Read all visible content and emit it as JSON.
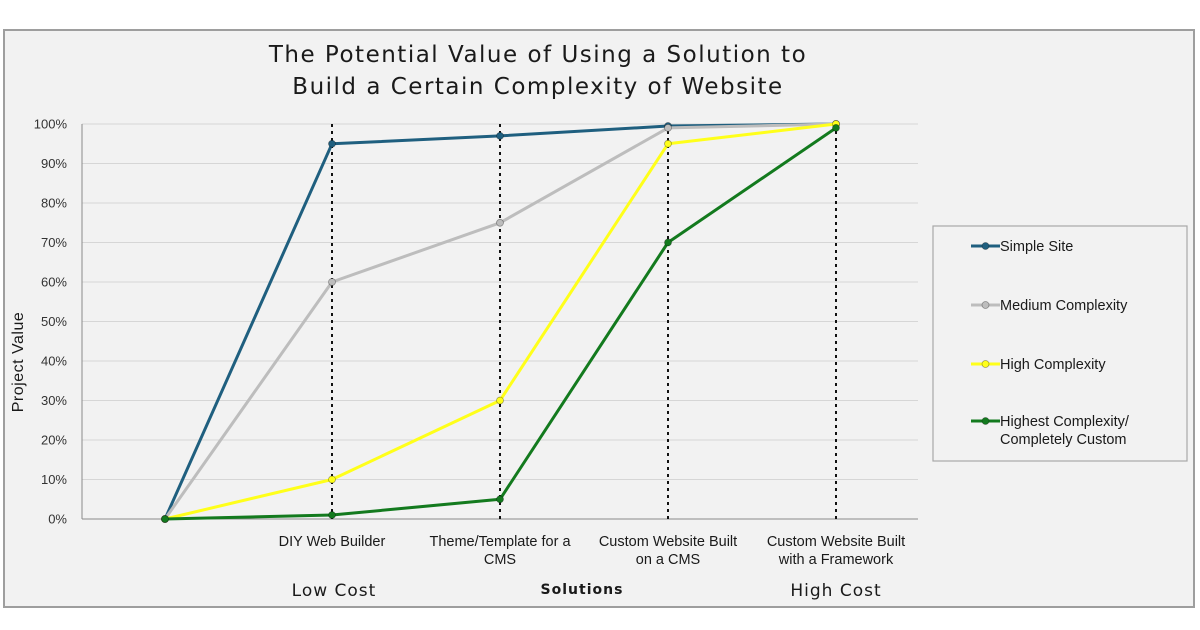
{
  "chart_data": {
    "type": "line",
    "title_lines": [
      "The Potential Value of Using a Solution to",
      "Build a Certain Complexity of Website"
    ],
    "xlabel": "Solutions",
    "ylabel": "Project Value",
    "x_categories": [
      {
        "lines": [
          ""
        ]
      },
      {
        "lines": [
          "DIY Web Builder"
        ]
      },
      {
        "lines": [
          "Theme/Template for a",
          "CMS"
        ]
      },
      {
        "lines": [
          "Custom Website Built",
          "on a CMS"
        ]
      },
      {
        "lines": [
          "Custom Website Built",
          "with a Framework"
        ]
      }
    ],
    "cost_labels": {
      "low": "Low Cost",
      "high": "High Cost"
    },
    "y_ticks": [
      "0%",
      "10%",
      "20%",
      "30%",
      "40%",
      "50%",
      "60%",
      "70%",
      "80%",
      "90%",
      "100%"
    ],
    "ylim": [
      0,
      100
    ],
    "grid": true,
    "dotted_verticals_at": [
      1,
      2,
      3,
      4
    ],
    "legend_position": "right",
    "series": [
      {
        "name_lines": [
          "Simple Site"
        ],
        "color": "#1f5f7f",
        "values": [
          0,
          95,
          97,
          99.5,
          100
        ]
      },
      {
        "name_lines": [
          "Medium Complexity"
        ],
        "color": "#bdbdbd",
        "values": [
          0,
          60,
          75,
          99,
          100
        ]
      },
      {
        "name_lines": [
          "High Complexity"
        ],
        "color": "#ffff1a",
        "values": [
          0,
          10,
          30,
          95,
          100
        ]
      },
      {
        "name_lines": [
          "Highest Complexity/",
          "Completely Custom"
        ],
        "color": "#137a1e",
        "values": [
          0,
          1,
          5,
          70,
          99
        ]
      }
    ]
  }
}
